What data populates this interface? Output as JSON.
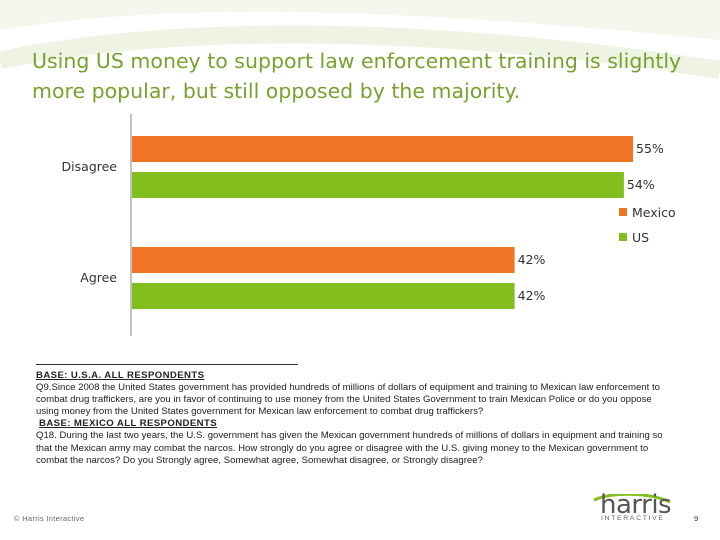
{
  "title": "Using US money to support law enforcement training is slightly more popular, but still opposed by the majority.",
  "chart_data": {
    "type": "bar",
    "orientation": "horizontal",
    "categories": [
      "Disagree",
      "Agree"
    ],
    "series": [
      {
        "name": "Mexico",
        "values": [
          55,
          42
        ],
        "color": "#f07424"
      },
      {
        "name": "US",
        "values": [
          54,
          42
        ],
        "color": "#82be1e"
      }
    ],
    "data_labels": [
      [
        "55%",
        "42%"
      ],
      [
        "54%",
        "42%"
      ]
    ],
    "xlim": [
      0,
      60
    ],
    "grid": false,
    "legend": "right"
  },
  "notes": {
    "us_base": "BASE: U.S.A. ALL RESPONDENTS",
    "us_question": "Q9.Since 2008 the United States government has provided hundreds of millions of dollars of equipment and training to Mexican law enforcement to combat drug traffickers, are you in favor of continuing to use money from the United States Government to train Mexican Police or do you oppose using money from the United States government for Mexican law enforcement to combat drug traffickers?",
    "mx_base": "BASE: MEXICO ALL RESPONDENTS",
    "mx_question": "Q18. During the last two years, the U.S. government has given the Mexican government hundreds of millions of dollars in equipment and training so that the Mexican army may combat the narcos. How strongly do you agree or disagree with the U.S. giving money to the Mexican government to combat the narcos? Do you Strongly agree, Somewhat agree, Somewhat disagree, or Strongly disagree?"
  },
  "footer": {
    "copyright": "© Harris Interactive",
    "logo_word": "harris",
    "logo_sub": "INTERACTIVE",
    "page_number": "9"
  },
  "colors": {
    "title": "#77a22e",
    "mexico": "#f07424",
    "us": "#82be1e"
  }
}
